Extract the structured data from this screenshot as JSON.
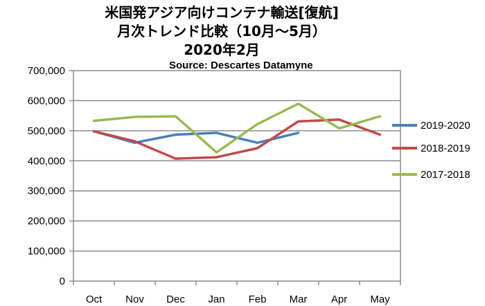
{
  "chart_data": {
    "type": "line",
    "title": "米国発アジア向けコンテナ輸送[復航]",
    "subtitle": "月次トレンド比較（10月～5月）",
    "date_line": "2020年2月",
    "source": "Source:  Descartes Datamyne",
    "categories": [
      "Oct",
      "Nov",
      "Dec",
      "Jan",
      "Feb",
      "Mar",
      "Apr",
      "May"
    ],
    "ylim": [
      0,
      700000
    ],
    "yticks": [
      "0",
      "100,000",
      "200,000",
      "300,000",
      "400,000",
      "500,000",
      "600,000",
      "700,000"
    ],
    "grid": true,
    "legend_position": "right",
    "series": [
      {
        "name": "2019-2020",
        "color": "#4a7ebb",
        "values": [
          498000,
          460000,
          487000,
          493000,
          460000,
          493000,
          null,
          null
        ]
      },
      {
        "name": "2018-2019",
        "color": "#be4b48",
        "values": [
          498000,
          465000,
          407000,
          412000,
          442000,
          531000,
          537000,
          487000
        ]
      },
      {
        "name": "2017-2018",
        "color": "#98b954",
        "values": [
          533000,
          546000,
          548000,
          428000,
          522000,
          590000,
          508000,
          548000
        ]
      }
    ]
  }
}
